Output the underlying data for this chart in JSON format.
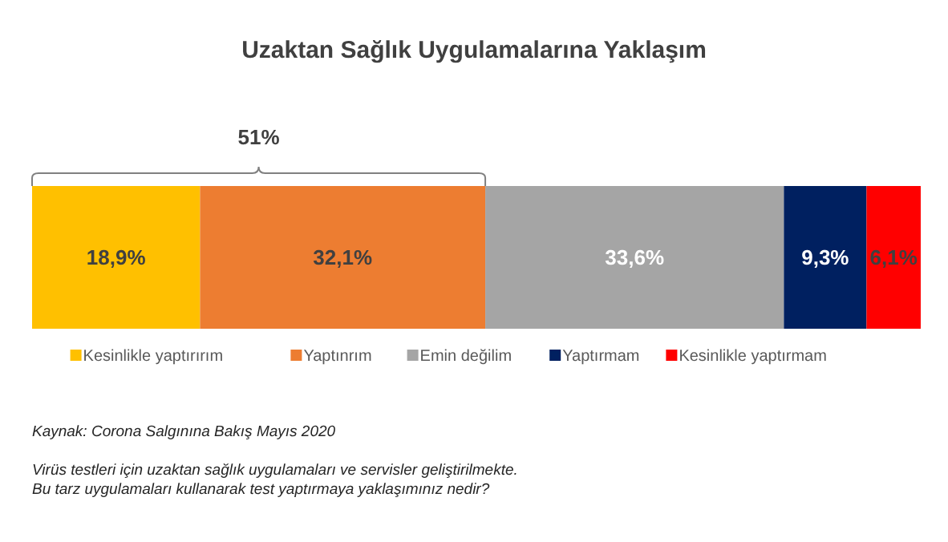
{
  "chart_data": {
    "type": "bar",
    "orientation": "horizontal",
    "stacked": true,
    "title": "Uzaktan Sağlık Uygulamalarına Yaklaşım",
    "categories": [
      null
    ],
    "xlim": [
      0,
      100
    ],
    "tick_labels": false,
    "data_labels": true,
    "legend": "bottom",
    "series": [
      {
        "name": "Kesinlikle yaptırırım",
        "color": "#ffc000",
        "values": [
          18.9
        ],
        "value_labels": [
          "18,9%"
        ]
      },
      {
        "name": "Yaptınrım",
        "color": "#ed7d31",
        "values": [
          32.1
        ],
        "value_labels": [
          "32,1%"
        ]
      },
      {
        "name": "Emin değilim",
        "color": "#a5a5a5",
        "values": [
          33.6
        ],
        "value_labels": [
          "33,6%"
        ]
      },
      {
        "name": "Yaptırmam",
        "color": "#002060",
        "values": [
          9.3
        ],
        "value_labels": [
          "9,3%"
        ]
      },
      {
        "name": "Kesinlikle yaptırmam",
        "color": "#ff0000",
        "values": [
          6.1
        ],
        "value_labels": [
          "6,1%"
        ]
      }
    ],
    "annotations": [
      "51%",
      "Kaynak: Corona Salgınına Bakış Mayıs 2020",
      "Virüs testleri için uzaktan sağlık uygulamaları ve servisler geliştirilmekte.",
      "Bu tarz uygulamaları kullanarak test yaptırmaya yaklaşımınız nedir?"
    ]
  }
}
